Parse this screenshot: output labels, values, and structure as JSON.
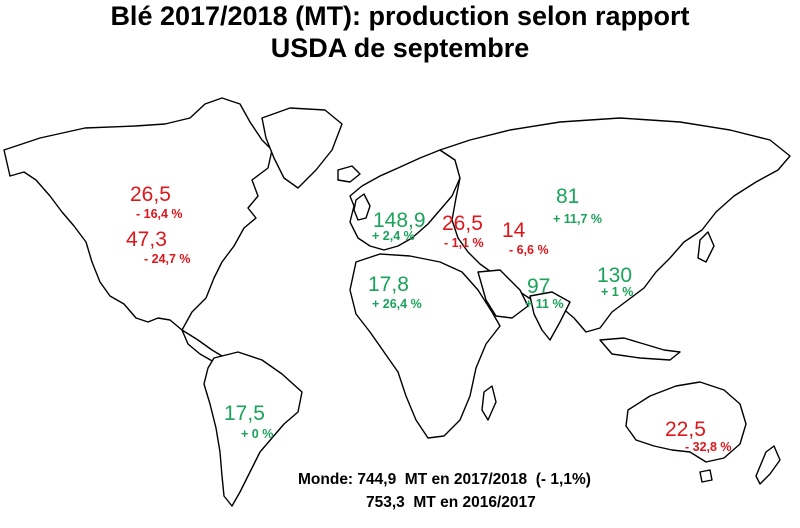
{
  "title": {
    "line1": "Blé 2017/2018 (MT): production selon rapport",
    "line2": "USDA de septembre"
  },
  "regions": [
    {
      "id": "canada",
      "value": "26,5",
      "change": "- 16,4 %",
      "trend": "down"
    },
    {
      "id": "usa",
      "value": "47,3",
      "change": "- 24,7 %",
      "trend": "down"
    },
    {
      "id": "eu",
      "value": "148,9",
      "change": "+ 2,4 %",
      "trend": "up"
    },
    {
      "id": "north-africa",
      "value": "17,8",
      "change": "+ 26,4 %",
      "trend": "up"
    },
    {
      "id": "ukraine",
      "value": "26,5",
      "change": "- 1,1 %",
      "trend": "down"
    },
    {
      "id": "kazakhstan",
      "value": "14",
      "change": "- 6,6 %",
      "trend": "down"
    },
    {
      "id": "russia",
      "value": "81",
      "change": "+ 11,7 %",
      "trend": "up"
    },
    {
      "id": "india",
      "value": "97",
      "change": "+ 11 %",
      "trend": "up"
    },
    {
      "id": "china",
      "value": "130",
      "change": "+ 1 %",
      "trend": "up"
    },
    {
      "id": "argentina",
      "value": "17,5",
      "change": "+ 0 %",
      "trend": "up"
    },
    {
      "id": "australia",
      "value": "22,5",
      "change": "- 32,8 %",
      "trend": "down"
    }
  ],
  "footer": {
    "line1": "Monde: 744,9  MT en 2017/2018  (- 1,1%)",
    "line2": "753,3  MT en 2016/2017"
  },
  "colors": {
    "up": "#1aa35a",
    "down": "#e0161b"
  }
}
